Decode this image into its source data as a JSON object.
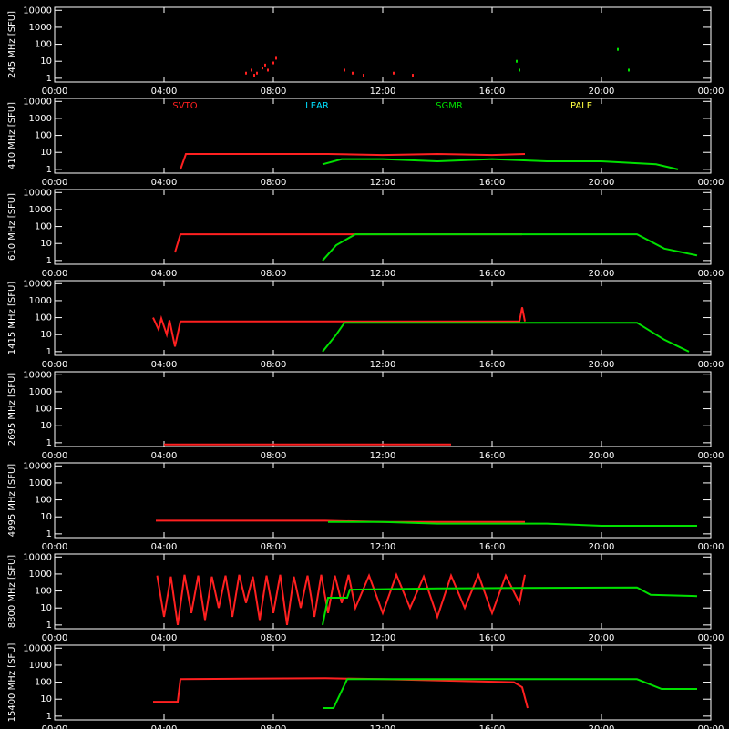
{
  "chart_data": [
    {
      "type": "scatter",
      "ylabel": "245 MHz [SFU]",
      "log_y": true,
      "xlim": [
        0,
        24
      ],
      "ylim": [
        0.6,
        15000
      ],
      "xticks": [
        {
          "value": 0,
          "label": "00:00"
        },
        {
          "value": 4,
          "label": "04:00"
        },
        {
          "value": 8,
          "label": "08:00"
        },
        {
          "value": 12,
          "label": "12:00"
        },
        {
          "value": 16,
          "label": "16:00"
        },
        {
          "value": 20,
          "label": "20:00"
        },
        {
          "value": 24,
          "label": "00:00"
        }
      ],
      "yticks": [
        1,
        10,
        100,
        1000,
        10000
      ],
      "series": [
        {
          "name": "SVTO",
          "color": "#ff2020",
          "x": [
            7.0,
            7.2,
            7.3,
            7.4,
            7.6,
            7.7,
            7.8,
            8.0,
            8.1,
            10.6,
            10.9,
            11.3,
            12.4,
            13.1
          ],
          "values": [
            2,
            3,
            1.5,
            2,
            4,
            6,
            3,
            8,
            15,
            3,
            2,
            1.5,
            2,
            1.5
          ]
        },
        {
          "name": "SGMR",
          "color": "#00e000",
          "x": [
            16.9,
            17.0,
            20.6,
            21.0
          ],
          "values": [
            10,
            3,
            50,
            3
          ]
        }
      ]
    },
    {
      "type": "line",
      "ylabel": "410 MHz [SFU]",
      "log_y": true,
      "xlim": [
        0,
        24
      ],
      "ylim": [
        0.6,
        15000
      ],
      "xticks": [
        {
          "value": 0,
          "label": "00:00"
        },
        {
          "value": 4,
          "label": "04:00"
        },
        {
          "value": 8,
          "label": "08:00"
        },
        {
          "value": 12,
          "label": "12:00"
        },
        {
          "value": 16,
          "label": "16:00"
        },
        {
          "value": 20,
          "label": "20:00"
        },
        {
          "value": 24,
          "label": "00:00"
        }
      ],
      "yticks": [
        1,
        10,
        100,
        1000,
        10000
      ],
      "legend": [
        {
          "name": "SVTO",
          "color": "#ff2020"
        },
        {
          "name": "LEAR",
          "color": "#00e0ff"
        },
        {
          "name": "SGMR",
          "color": "#00e000"
        },
        {
          "name": "PALE",
          "color": "#ffff40"
        }
      ],
      "series": [
        {
          "name": "SVTO",
          "color": "#ff2020",
          "x": [
            4.6,
            4.8,
            6,
            8,
            10,
            12,
            14,
            16,
            17.2
          ],
          "values": [
            1,
            8,
            8,
            8,
            8,
            7,
            8,
            7,
            8
          ]
        },
        {
          "name": "SGMR",
          "color": "#00e000",
          "x": [
            9.8,
            10.5,
            12,
            14,
            16,
            18,
            20,
            22,
            22.8
          ],
          "values": [
            2,
            4,
            4,
            3,
            4,
            3,
            3,
            2,
            1
          ]
        }
      ]
    },
    {
      "type": "line",
      "ylabel": "610 MHz [SFU]",
      "log_y": true,
      "xlim": [
        0,
        24
      ],
      "ylim": [
        0.6,
        15000
      ],
      "xticks": [
        {
          "value": 0,
          "label": "00:00"
        },
        {
          "value": 4,
          "label": "04:00"
        },
        {
          "value": 8,
          "label": "08:00"
        },
        {
          "value": 12,
          "label": "12:00"
        },
        {
          "value": 16,
          "label": "16:00"
        },
        {
          "value": 20,
          "label": "20:00"
        },
        {
          "value": 24,
          "label": "00:00"
        }
      ],
      "yticks": [
        1,
        10,
        100,
        1000,
        10000
      ],
      "series": [
        {
          "name": "SVTO",
          "color": "#ff2020",
          "x": [
            4.4,
            4.6,
            8,
            12,
            16,
            17.1
          ],
          "values": [
            3,
            35,
            35,
            35,
            35,
            35
          ]
        },
        {
          "name": "SGMR",
          "color": "#00e000",
          "x": [
            9.8,
            10.3,
            11,
            14,
            18,
            21.3,
            22.3,
            23.5
          ],
          "values": [
            1,
            8,
            35,
            35,
            35,
            35,
            5,
            2
          ]
        }
      ]
    },
    {
      "type": "line",
      "ylabel": "1415 MHz [SFU]",
      "log_y": true,
      "xlim": [
        0,
        24
      ],
      "ylim": [
        0.6,
        15000
      ],
      "xticks": [
        {
          "value": 0,
          "label": "00:00"
        },
        {
          "value": 4,
          "label": "04:00"
        },
        {
          "value": 8,
          "label": "08:00"
        },
        {
          "value": 12,
          "label": "12:00"
        },
        {
          "value": 16,
          "label": "16:00"
        },
        {
          "value": 20,
          "label": "20:00"
        },
        {
          "value": 24,
          "label": "00:00"
        }
      ],
      "yticks": [
        1,
        10,
        100,
        1000,
        10000
      ],
      "series": [
        {
          "name": "SVTO",
          "color": "#ff2020",
          "x": [
            3.6,
            3.8,
            3.9,
            4.1,
            4.2,
            4.4,
            4.6,
            6,
            8,
            10,
            12,
            14,
            16,
            17.0,
            17.1,
            17.2
          ],
          "values": [
            100,
            20,
            90,
            10,
            70,
            2,
            60,
            60,
            60,
            60,
            60,
            60,
            60,
            60,
            400,
            60
          ]
        },
        {
          "name": "SGMR",
          "color": "#00e000",
          "x": [
            9.8,
            10.3,
            10.6,
            14,
            18,
            21.3,
            22.3,
            23.2
          ],
          "values": [
            1,
            10,
            50,
            50,
            50,
            50,
            5,
            1
          ]
        }
      ]
    },
    {
      "type": "line",
      "ylabel": "2695 MHz [SFU]",
      "log_y": true,
      "xlim": [
        0,
        24
      ],
      "ylim": [
        0.6,
        15000
      ],
      "xticks": [
        {
          "value": 0,
          "label": "00:00"
        },
        {
          "value": 4,
          "label": "04:00"
        },
        {
          "value": 8,
          "label": "08:00"
        },
        {
          "value": 12,
          "label": "12:00"
        },
        {
          "value": 16,
          "label": "16:00"
        },
        {
          "value": 20,
          "label": "20:00"
        },
        {
          "value": 24,
          "label": "00:00"
        }
      ],
      "yticks": [
        1,
        10,
        100,
        1000,
        10000
      ],
      "series": [
        {
          "name": "SVTO",
          "color": "#ff2020",
          "x": [
            4.0,
            8,
            11.2,
            14.5
          ],
          "values": [
            0.8,
            0.8,
            0.8,
            0.8
          ]
        }
      ]
    },
    {
      "type": "line",
      "ylabel": "4995 MHz [SFU]",
      "log_y": true,
      "xlim": [
        0,
        24
      ],
      "ylim": [
        0.6,
        15000
      ],
      "xticks": [
        {
          "value": 0,
          "label": "00:00"
        },
        {
          "value": 4,
          "label": "04:00"
        },
        {
          "value": 8,
          "label": "08:00"
        },
        {
          "value": 12,
          "label": "12:00"
        },
        {
          "value": 16,
          "label": "16:00"
        },
        {
          "value": 20,
          "label": "20:00"
        },
        {
          "value": 24,
          "label": "00:00"
        }
      ],
      "yticks": [
        1,
        10,
        100,
        1000,
        10000
      ],
      "series": [
        {
          "name": "SVTO",
          "color": "#ff2020",
          "x": [
            3.7,
            6,
            8,
            9.9,
            12,
            15,
            17.2
          ],
          "values": [
            6,
            6,
            6,
            6,
            5,
            5,
            5
          ]
        },
        {
          "name": "SGMR",
          "color": "#00e000",
          "x": [
            10.0,
            12,
            14,
            16,
            18,
            20,
            22,
            23.5
          ],
          "values": [
            5,
            5,
            4,
            4,
            4,
            3,
            3,
            3
          ]
        }
      ]
    },
    {
      "type": "line",
      "ylabel": "8800 MHz [SFU]",
      "log_y": true,
      "xlim": [
        0,
        24
      ],
      "ylim": [
        0.6,
        15000
      ],
      "xticks": [
        {
          "value": 0,
          "label": "00:00"
        },
        {
          "value": 4,
          "label": "04:00"
        },
        {
          "value": 8,
          "label": "08:00"
        },
        {
          "value": 12,
          "label": "12:00"
        },
        {
          "value": 16,
          "label": "16:00"
        },
        {
          "value": 20,
          "label": "20:00"
        },
        {
          "value": 24,
          "label": "00:00"
        }
      ],
      "yticks": [
        1,
        10,
        100,
        1000,
        10000
      ],
      "series": [
        {
          "name": "SVTO",
          "color": "#ff2020",
          "x": [
            3.75,
            4.0,
            4.25,
            4.5,
            4.75,
            5.0,
            5.25,
            5.5,
            5.75,
            6.0,
            6.25,
            6.5,
            6.75,
            7.0,
            7.25,
            7.5,
            7.75,
            8.0,
            8.25,
            8.5,
            8.75,
            9.0,
            9.25,
            9.5,
            9.75,
            10.0,
            10.25,
            10.5,
            10.75,
            11.0,
            11.5,
            12.0,
            12.5,
            13.0,
            13.5,
            14.0,
            14.5,
            15.0,
            15.5,
            16.0,
            16.5,
            17.0,
            17.2
          ],
          "values": [
            800,
            3,
            700,
            1,
            900,
            5,
            800,
            2,
            700,
            10,
            800,
            3,
            900,
            20,
            700,
            2,
            800,
            5,
            900,
            1,
            700,
            10,
            800,
            3,
            900,
            5,
            800,
            20,
            900,
            10,
            800,
            5,
            900,
            10,
            700,
            3,
            800,
            10,
            900,
            5,
            800,
            20,
            900
          ]
        },
        {
          "name": "SGMR",
          "color": "#00e000",
          "x": [
            9.8,
            10.0,
            10.7,
            10.8,
            14,
            17,
            21.3,
            21.8,
            23.5
          ],
          "values": [
            1,
            40,
            40,
            120,
            140,
            150,
            160,
            60,
            50
          ]
        }
      ]
    },
    {
      "type": "line",
      "ylabel": "15400 MHz [SFU]",
      "log_y": true,
      "xlim": [
        0,
        24
      ],
      "ylim": [
        0.6,
        15000
      ],
      "xticks": [
        {
          "value": 0,
          "label": "00:00"
        },
        {
          "value": 4,
          "label": "04:00"
        },
        {
          "value": 8,
          "label": "08:00"
        },
        {
          "value": 12,
          "label": "12:00"
        },
        {
          "value": 16,
          "label": "16:00"
        },
        {
          "value": 20,
          "label": "20:00"
        },
        {
          "value": 24,
          "label": "00:00"
        }
      ],
      "yticks": [
        1,
        10,
        100,
        1000,
        10000
      ],
      "series": [
        {
          "name": "SVTO",
          "color": "#ff2020",
          "x": [
            3.6,
            4.5,
            4.6,
            7,
            9.9,
            12,
            16.8,
            17.1,
            17.3
          ],
          "values": [
            7,
            7,
            150,
            160,
            170,
            150,
            100,
            50,
            3
          ]
        },
        {
          "name": "SGMR",
          "color": "#00e000",
          "x": [
            9.8,
            10.2,
            10.7,
            14,
            18,
            21.3,
            22.2,
            23.5
          ],
          "values": [
            3,
            3,
            150,
            150,
            150,
            150,
            40,
            40
          ]
        }
      ]
    }
  ]
}
